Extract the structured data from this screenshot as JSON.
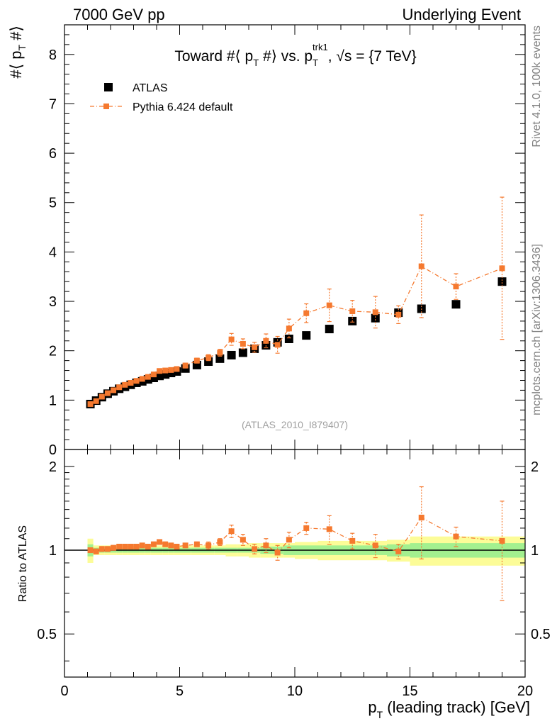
{
  "header": {
    "left": "7000 GeV pp",
    "right": "Underlying Event"
  },
  "side": {
    "rivet": "Rivet 4.1.0,  100k events",
    "mcplots": "mcplots.cern.ch [arXiv:1306.3436]"
  },
  "colors": {
    "mc": "#f5792f",
    "band_inner": "#a3f08f",
    "band_outer": "#fcfc98",
    "data": "#000000",
    "watermark": "#a0a0a0"
  },
  "chart_data": {
    "type": "scatter",
    "title": {
      "main": "Toward #⟨ p",
      "sub1": "T",
      "mid": " #⟩ vs. p",
      "sup": "trk1",
      "sub2": "T",
      "rest": ", √s = {7 TeV}"
    },
    "ylabel": {
      "pre": "#⟨ p",
      "sub": "T",
      "post": " #⟩"
    },
    "xlabel": {
      "pre": "p",
      "sub": "T",
      "post": " (leading track) [GeV]"
    },
    "ratio_ylabel": "Ratio to ATLAS",
    "watermark": "(ATLAS_2010_I879407)",
    "xlim": [
      0,
      20
    ],
    "ylim": [
      0,
      8.6
    ],
    "ratio_ylim": [
      0.35,
      2.3
    ],
    "x_ticks": [
      "0",
      "5",
      "10",
      "15",
      "20"
    ],
    "y_ticks": [
      "0",
      "1",
      "2",
      "3",
      "4",
      "5",
      "6",
      "7",
      "8"
    ],
    "ratio_ticks": [
      "0.5",
      "1",
      "2"
    ],
    "legend": {
      "position": "top-left",
      "data": "ATLAS",
      "mc": "Pythia 6.424 default"
    },
    "x": [
      1.125,
      1.375,
      1.625,
      1.875,
      2.125,
      2.375,
      2.625,
      2.875,
      3.125,
      3.375,
      3.625,
      3.875,
      4.125,
      4.375,
      4.625,
      4.875,
      5.25,
      5.75,
      6.25,
      6.75,
      7.25,
      7.75,
      8.25,
      8.75,
      9.25,
      9.75,
      10.5,
      11.5,
      12.5,
      13.5,
      14.5,
      15.5,
      17.0,
      19.0
    ],
    "x_low": [
      1.0,
      1.25,
      1.5,
      1.75,
      2.0,
      2.25,
      2.5,
      2.75,
      3.0,
      3.25,
      3.5,
      3.75,
      4.0,
      4.25,
      4.5,
      4.75,
      5.0,
      5.5,
      6.0,
      6.5,
      7.0,
      7.5,
      8.0,
      8.5,
      9.0,
      9.5,
      10.0,
      11.0,
      12.0,
      13.0,
      14.0,
      15.0,
      16.0,
      18.0
    ],
    "x_high": [
      1.25,
      1.5,
      1.75,
      2.0,
      2.25,
      2.5,
      2.75,
      3.0,
      3.25,
      3.5,
      3.75,
      4.0,
      4.25,
      4.5,
      4.75,
      5.0,
      5.5,
      6.0,
      6.5,
      7.0,
      7.5,
      8.0,
      8.5,
      9.0,
      9.5,
      10.0,
      11.0,
      12.0,
      13.0,
      14.0,
      15.0,
      16.0,
      18.0,
      20.0
    ],
    "series": [
      {
        "name": "ATLAS",
        "values": [
          0.92,
          0.99,
          1.06,
          1.13,
          1.18,
          1.23,
          1.27,
          1.31,
          1.35,
          1.38,
          1.42,
          1.45,
          1.49,
          1.52,
          1.55,
          1.58,
          1.64,
          1.71,
          1.78,
          1.84,
          1.91,
          1.96,
          2.04,
          2.11,
          2.17,
          2.24,
          2.31,
          2.44,
          2.6,
          2.66,
          2.77,
          2.85,
          2.94,
          3.4
        ]
      },
      {
        "name": "Pythia 6.424 default",
        "values": [
          0.92,
          0.98,
          1.07,
          1.14,
          1.2,
          1.26,
          1.31,
          1.35,
          1.39,
          1.43,
          1.47,
          1.52,
          1.59,
          1.6,
          1.61,
          1.63,
          1.7,
          1.8,
          1.86,
          1.96,
          2.23,
          2.14,
          2.07,
          2.2,
          2.12,
          2.45,
          2.76,
          2.92,
          2.8,
          2.78,
          2.73,
          3.71,
          3.3,
          3.67
        ],
        "errors": [
          0.03,
          0.03,
          0.03,
          0.03,
          0.03,
          0.03,
          0.03,
          0.03,
          0.03,
          0.03,
          0.03,
          0.03,
          0.04,
          0.04,
          0.04,
          0.04,
          0.05,
          0.05,
          0.06,
          0.07,
          0.12,
          0.1,
          0.1,
          0.14,
          0.17,
          0.19,
          0.19,
          0.33,
          0.22,
          0.32,
          0.18,
          1.04,
          0.26,
          1.44
        ]
      }
    ],
    "ratio": {
      "values": [
        1.0,
        0.99,
        1.01,
        1.01,
        1.02,
        1.03,
        1.03,
        1.03,
        1.03,
        1.04,
        1.03,
        1.05,
        1.07,
        1.05,
        1.04,
        1.03,
        1.04,
        1.05,
        1.04,
        1.07,
        1.17,
        1.09,
        1.01,
        1.04,
        0.98,
        1.09,
        1.2,
        1.19,
        1.08,
        1.04,
        0.99,
        1.31,
        1.12,
        1.08
      ],
      "errors": [
        0.02,
        0.02,
        0.02,
        0.02,
        0.02,
        0.02,
        0.02,
        0.02,
        0.02,
        0.02,
        0.02,
        0.02,
        0.02,
        0.02,
        0.02,
        0.02,
        0.02,
        0.02,
        0.03,
        0.03,
        0.06,
        0.05,
        0.04,
        0.06,
        0.06,
        0.07,
        0.06,
        0.14,
        0.07,
        0.1,
        0.06,
        0.38,
        0.09,
        0.42
      ],
      "band_inner": [
        0.05,
        0.02,
        0.02,
        0.02,
        0.02,
        0.02,
        0.02,
        0.02,
        0.02,
        0.02,
        0.02,
        0.02,
        0.02,
        0.02,
        0.02,
        0.02,
        0.02,
        0.02,
        0.02,
        0.02,
        0.02,
        0.02,
        0.02,
        0.03,
        0.03,
        0.04,
        0.04,
        0.04,
        0.04,
        0.04,
        0.05,
        0.06,
        0.06,
        0.06
      ],
      "band_outer": [
        0.1,
        0.04,
        0.04,
        0.04,
        0.04,
        0.04,
        0.04,
        0.04,
        0.04,
        0.04,
        0.04,
        0.04,
        0.04,
        0.04,
        0.04,
        0.04,
        0.04,
        0.04,
        0.04,
        0.04,
        0.05,
        0.05,
        0.06,
        0.06,
        0.06,
        0.06,
        0.07,
        0.08,
        0.08,
        0.08,
        0.09,
        0.12,
        0.12,
        0.12
      ]
    }
  }
}
